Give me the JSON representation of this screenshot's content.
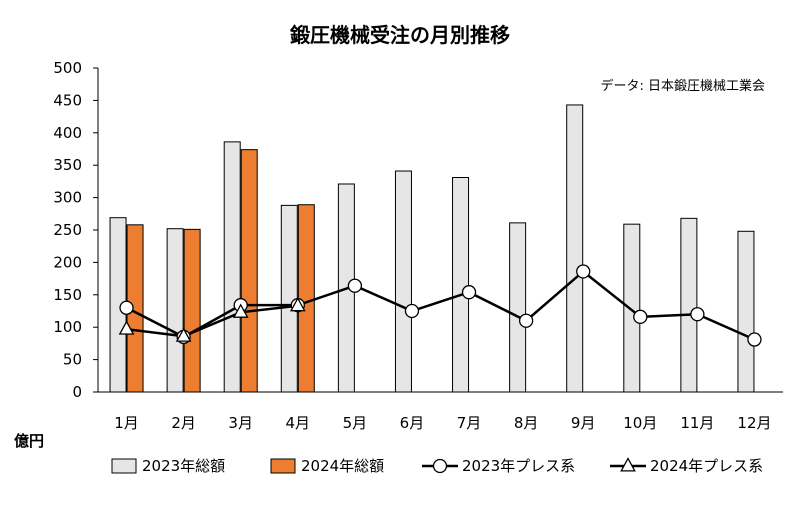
{
  "chart_data": {
    "type": "bar",
    "title": "鍛圧機械受注の月別推移",
    "source": "データ: 日本鍛圧機械工業会",
    "ylabel": "億円",
    "ylim": [
      0,
      500
    ],
    "yticks": [
      0,
      50,
      100,
      150,
      200,
      250,
      300,
      350,
      400,
      450,
      500
    ],
    "grid": false,
    "legend_position": "bottom",
    "categories": [
      "1月",
      "2月",
      "3月",
      "4月",
      "5月",
      "6月",
      "7月",
      "8月",
      "9月",
      "10月",
      "11月",
      "12月"
    ],
    "series": [
      {
        "name": "2023年総額",
        "type": "bar",
        "color": "#e6e6e6",
        "values": [
          269,
          252,
          386,
          288,
          321,
          341,
          331,
          261,
          443,
          259,
          268,
          248
        ]
      },
      {
        "name": "2024年総額",
        "type": "bar",
        "color": "#ed7d31",
        "values": [
          258,
          251,
          374,
          289,
          null,
          null,
          null,
          null,
          null,
          null,
          null,
          null
        ]
      },
      {
        "name": "2023年プレス系",
        "type": "line",
        "marker": "circle",
        "color": "#000000",
        "values": [
          130,
          85,
          134,
          134,
          164,
          125,
          154,
          110,
          186,
          116,
          120,
          81
        ]
      },
      {
        "name": "2024年プレス系",
        "type": "line",
        "marker": "triangle",
        "color": "#000000",
        "values": [
          97,
          86,
          123,
          133,
          null,
          null,
          null,
          null,
          null,
          null,
          null,
          null
        ]
      }
    ]
  }
}
